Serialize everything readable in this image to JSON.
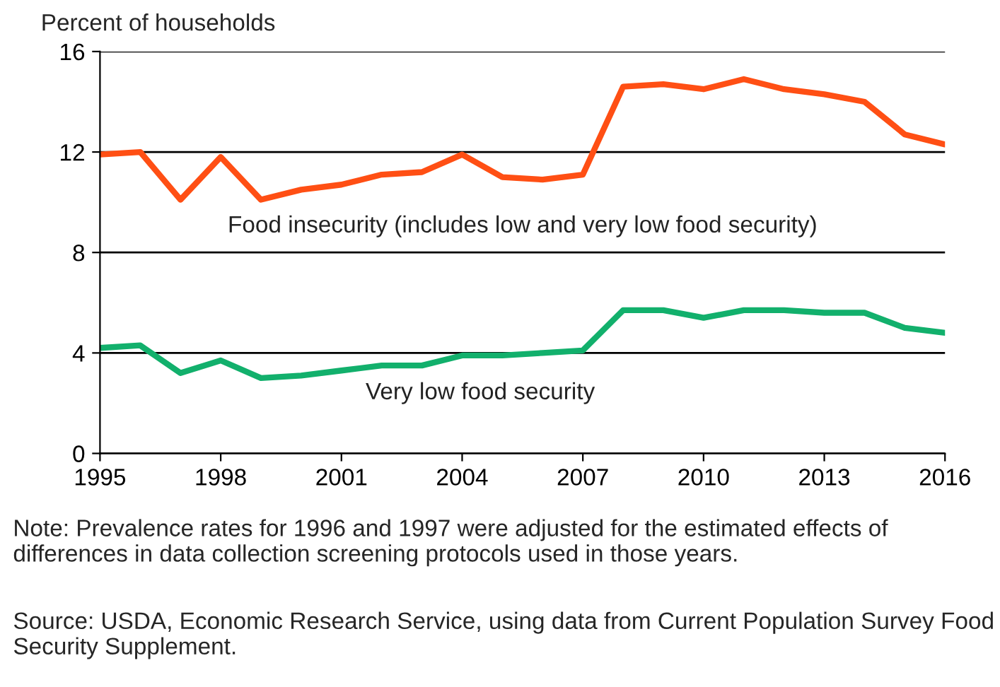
{
  "chart_data": {
    "type": "line",
    "ylabel": "Percent of households",
    "x": [
      1995,
      1996,
      1997,
      1998,
      1999,
      2000,
      2001,
      2002,
      2003,
      2004,
      2005,
      2006,
      2007,
      2008,
      2009,
      2010,
      2011,
      2012,
      2013,
      2014,
      2015,
      2016
    ],
    "series": [
      {
        "name": "Food insecurity (includes low and very low food security)",
        "color": "#ff4f14",
        "values": [
          11.9,
          12.0,
          10.1,
          11.8,
          10.1,
          10.5,
          10.7,
          11.1,
          11.2,
          11.9,
          11.0,
          10.9,
          11.1,
          14.6,
          14.7,
          14.5,
          14.9,
          14.5,
          14.3,
          14.0,
          12.7,
          12.3
        ]
      },
      {
        "name": "Very low food security",
        "color": "#12b06c",
        "values": [
          4.2,
          4.3,
          3.2,
          3.7,
          3.0,
          3.1,
          3.3,
          3.5,
          3.5,
          3.9,
          3.9,
          4.0,
          4.1,
          5.7,
          5.7,
          5.4,
          5.7,
          5.7,
          5.6,
          5.6,
          5.0,
          4.8
        ]
      }
    ],
    "xlim": [
      1995,
      2016
    ],
    "xticks": [
      1995,
      1998,
      2001,
      2004,
      2007,
      2010,
      2013,
      2016
    ],
    "ylim": [
      0,
      16
    ],
    "yticks": [
      0,
      4,
      8,
      12,
      16
    ],
    "grid": "y",
    "legend": false,
    "marker": "none",
    "line_style": "solid",
    "annotations": [
      "Note: Prevalence rates for 1996 and 1997 were adjusted for the estimated effects of differences in data collection screening protocols used in those years.",
      "Source: USDA, Economic Research Service, using data from Current Population Survey Food Security Supplement."
    ]
  }
}
